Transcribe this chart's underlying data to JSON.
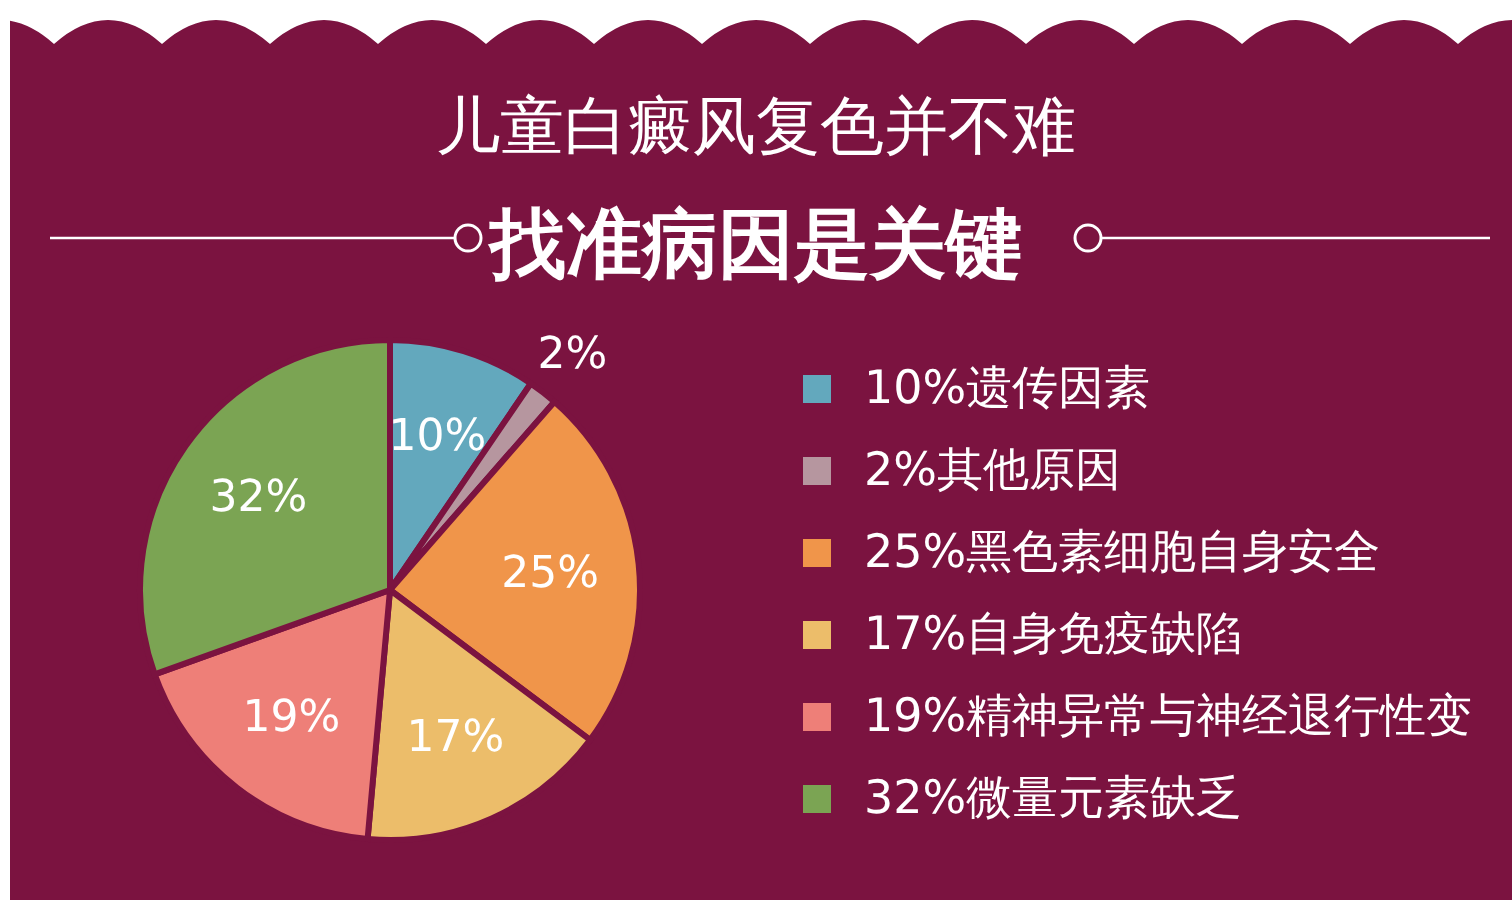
{
  "chart_data": {
    "type": "pie",
    "title": "儿童白癜风复色并不难",
    "subtitle": "找准病因是关键",
    "categories": [
      "10%遗传因素",
      "2%其他原因",
      "25%黑色素细胞自身安全",
      "17%自身免疫缺陷",
      "19%精神异常与神经退行性变",
      "32%微量元素缺乏"
    ],
    "values": [
      10,
      2,
      25,
      17,
      19,
      32
    ],
    "colors": [
      "#63a8bd",
      "#b6969f",
      "#f0954a",
      "#ecbd6a",
      "#ee7f78",
      "#7ba453"
    ],
    "value_labels": [
      "10%",
      "2%",
      "25%",
      "17%",
      "19%",
      "32%"
    ],
    "legend": "right"
  }
}
